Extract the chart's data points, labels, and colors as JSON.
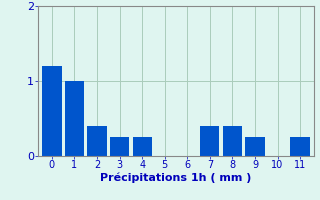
{
  "categories": [
    0,
    1,
    2,
    3,
    4,
    5,
    6,
    7,
    8,
    9,
    10,
    11
  ],
  "values": [
    1.2,
    1.0,
    0.4,
    0.25,
    0.25,
    0.0,
    0.0,
    0.4,
    0.4,
    0.25,
    0.0,
    0.25
  ],
  "bar_color": "#0055cc",
  "background_color": "#dff5f0",
  "grid_color": "#aaccbb",
  "xlabel": "Précipitations 1h ( mm )",
  "xlabel_color": "#0000bb",
  "tick_color": "#0000bb",
  "spine_color": "#888888",
  "ylim": [
    0,
    2
  ],
  "yticks": [
    0,
    1,
    2
  ],
  "bar_width": 0.85,
  "tick_fontsize": 7,
  "xlabel_fontsize": 8
}
